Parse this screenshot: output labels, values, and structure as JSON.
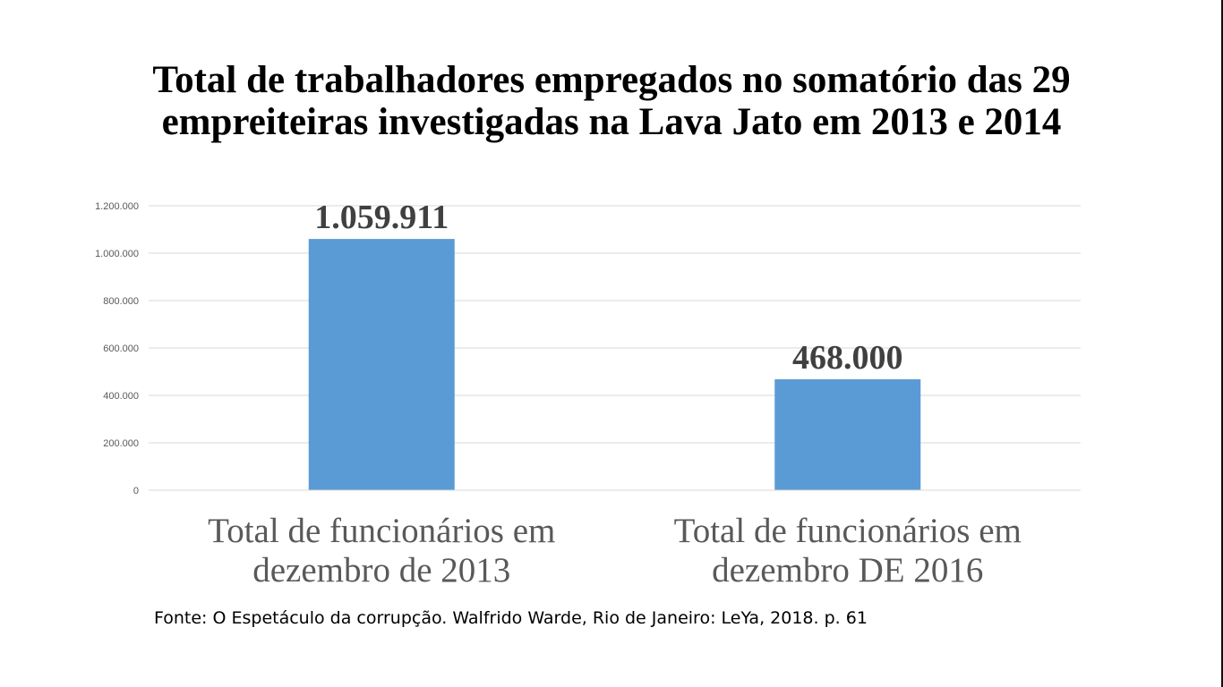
{
  "colors": {
    "bar": "#5B9BD5",
    "grid": "#D9D9D9",
    "tick": "#595959",
    "data_label": "#404040"
  },
  "chart_data": {
    "type": "bar",
    "title": "Total de trabalhadores empregados no somatório das 29 empreiteiras investigadas na Lava Jato em 2013 e 2014",
    "title_lines": [
      "Total de trabalhadores empregados no somatório das 29",
      "empreiteiras investigadas na Lava Jato em 2013 e 2014"
    ],
    "categories": [
      "Total de funcionários em dezembro de 2013",
      "Total de funcionários em dezembro DE 2016"
    ],
    "category_lines": [
      [
        "Total de funcionários em",
        "dezembro de 2013"
      ],
      [
        "Total de funcionários em",
        "dezembro DE 2016"
      ]
    ],
    "values": [
      1059911,
      468000
    ],
    "data_labels": [
      "1.059.911",
      "468.000"
    ],
    "ylim": [
      0,
      1200000
    ],
    "yticks": [
      0,
      200000,
      400000,
      600000,
      800000,
      1000000,
      1200000
    ],
    "ytick_labels": [
      "0",
      "200.000",
      "400.000",
      "600.000",
      "800.000",
      "1.000.000",
      "1.200.000"
    ],
    "grid": true,
    "legend": "none"
  },
  "source": "Fonte: O Espetáculo da corrupção. Walfrido Warde, Rio de Janeiro: LeYa, 2018. p. 61"
}
